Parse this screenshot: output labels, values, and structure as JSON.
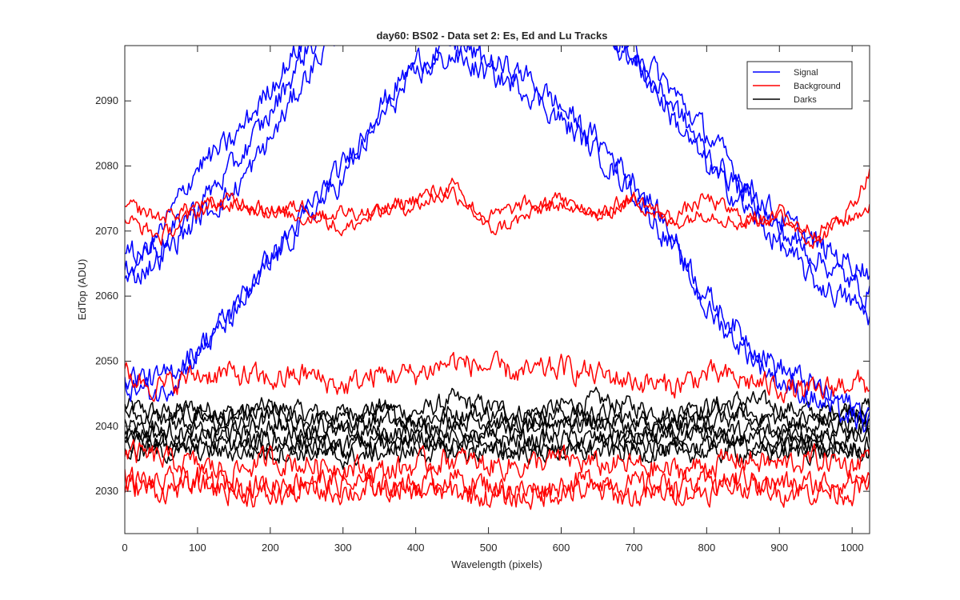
{
  "chart_data": {
    "type": "line",
    "title": "day60: BS02 - Data set 2: Es, Ed and Lu Tracks",
    "xlabel": "Wavelength (pixels)",
    "ylabel": "EdTop (ADU)",
    "xlim": [
      0,
      1024
    ],
    "ylim": [
      2023.5,
      2098.5
    ],
    "xticks": [
      0,
      100,
      200,
      300,
      400,
      500,
      600,
      700,
      800,
      900,
      1000
    ],
    "yticks": [
      2030,
      2040,
      2050,
      2060,
      2070,
      2080,
      2090
    ],
    "grid": false,
    "legend_position": "top-right",
    "legend": [
      {
        "label": "Signal",
        "color": "#0000ff"
      },
      {
        "label": "Background",
        "color": "#ff0000"
      },
      {
        "label": "Darks",
        "color": "#000000"
      }
    ],
    "x": [
      0,
      50,
      100,
      150,
      200,
      250,
      300,
      350,
      400,
      450,
      500,
      550,
      600,
      650,
      700,
      750,
      800,
      850,
      900,
      950,
      1000,
      1024
    ],
    "series": [
      {
        "group": "Signal",
        "color": "#0000ff",
        "noise": 1.6,
        "values": [
          2063,
          2070,
          2080,
          2084,
          2092,
          2100,
          2102,
          2102,
          2102,
          2102,
          2102,
          2102,
          2102,
          2102,
          2098,
          2092,
          2085,
          2078,
          2072,
          2068,
          2065,
          2064
        ]
      },
      {
        "group": "Signal",
        "color": "#0000ff",
        "noise": 1.6,
        "values": [
          2066,
          2068,
          2074,
          2080,
          2088,
          2098,
          2102,
          2102,
          2102,
          2102,
          2102,
          2102,
          2102,
          2102,
          2097,
          2088,
          2080,
          2074,
          2068,
          2062,
          2059,
          2057
        ]
      },
      {
        "group": "Signal",
        "color": "#0000ff",
        "noise": 1.6,
        "values": [
          2062,
          2066,
          2072,
          2076,
          2084,
          2094,
          2102,
          2102,
          2102,
          2102,
          2102,
          2102,
          2102,
          2102,
          2096,
          2090,
          2082,
          2076,
          2070,
          2066,
          2062,
          2060
        ]
      },
      {
        "group": "Signal",
        "color": "#0000ff",
        "noise": 1.6,
        "values": [
          2048,
          2047,
          2052,
          2058,
          2066,
          2073,
          2080,
          2089,
          2096,
          2099,
          2096,
          2094,
          2089,
          2084,
          2078,
          2070,
          2060,
          2054,
          2049,
          2046,
          2043,
          2042
        ]
      },
      {
        "group": "Signal",
        "color": "#0000ff",
        "noise": 1.6,
        "values": [
          2046,
          2045,
          2051,
          2057,
          2065,
          2072,
          2078,
          2087,
          2094,
          2097,
          2094,
          2092,
          2087,
          2082,
          2076,
          2068,
          2058,
          2052,
          2047,
          2044,
          2041,
          2040
        ]
      },
      {
        "group": "Background",
        "color": "#ff0000",
        "noise": 1.0,
        "values": [
          2074,
          2072,
          2074,
          2074,
          2073,
          2074,
          2070,
          2073,
          2075,
          2077,
          2070,
          2072,
          2075,
          2072,
          2075,
          2071,
          2073,
          2071,
          2073,
          2068,
          2074,
          2079
        ]
      },
      {
        "group": "Background",
        "color": "#ff0000",
        "noise": 1.0,
        "values": [
          2072,
          2069,
          2073,
          2075,
          2073,
          2072,
          2073,
          2073,
          2074,
          2076,
          2072,
          2074,
          2074,
          2073,
          2075,
          2072,
          2075,
          2072,
          2072,
          2070,
          2072,
          2074
        ]
      },
      {
        "group": "Background",
        "color": "#ff0000",
        "noise": 1.6,
        "values": [
          2048,
          2046,
          2048,
          2048,
          2047,
          2048,
          2046,
          2048,
          2048,
          2050,
          2049,
          2048,
          2049,
          2048,
          2047,
          2046,
          2048,
          2047,
          2046,
          2045,
          2047,
          2046
        ]
      },
      {
        "group": "Background",
        "color": "#ff0000",
        "noise": 1.6,
        "values": [
          2036,
          2035,
          2034,
          2033,
          2035,
          2034,
          2034,
          2033,
          2034,
          2035,
          2034,
          2034,
          2035,
          2034,
          2034,
          2033,
          2034,
          2035,
          2034,
          2035,
          2034,
          2036
        ]
      },
      {
        "group": "Background",
        "color": "#ff0000",
        "noise": 1.6,
        "values": [
          2032,
          2031,
          2032,
          2031,
          2031,
          2032,
          2031,
          2031,
          2031,
          2032,
          2031,
          2030,
          2031,
          2032,
          2031,
          2031,
          2031,
          2032,
          2031,
          2031,
          2032,
          2032
        ]
      },
      {
        "group": "Background",
        "color": "#ff0000",
        "noise": 1.6,
        "values": [
          2031,
          2030,
          2031,
          2030,
          2029,
          2030,
          2030,
          2030,
          2030,
          2030,
          2029,
          2029,
          2030,
          2030,
          2029,
          2030,
          2030,
          2031,
          2030,
          2030,
          2030,
          2031
        ]
      },
      {
        "group": "Darks",
        "color": "#000000",
        "noise": 1.3,
        "values": [
          2043,
          2042,
          2043,
          2042,
          2043,
          2042,
          2042,
          2043,
          2042,
          2044,
          2043,
          2042,
          2043,
          2044,
          2043,
          2042,
          2043,
          2044,
          2043,
          2042,
          2043,
          2043
        ]
      },
      {
        "group": "Darks",
        "color": "#000000",
        "noise": 1.3,
        "values": [
          2042,
          2041,
          2042,
          2041,
          2042,
          2041,
          2041,
          2042,
          2041,
          2042,
          2042,
          2041,
          2042,
          2042,
          2041,
          2041,
          2042,
          2042,
          2041,
          2041,
          2042,
          2042
        ]
      },
      {
        "group": "Darks",
        "color": "#000000",
        "noise": 1.3,
        "values": [
          2040,
          2040,
          2041,
          2040,
          2041,
          2040,
          2040,
          2041,
          2040,
          2041,
          2041,
          2040,
          2041,
          2041,
          2040,
          2040,
          2041,
          2041,
          2040,
          2040,
          2041,
          2041
        ]
      },
      {
        "group": "Darks",
        "color": "#000000",
        "noise": 1.3,
        "values": [
          2039,
          2039,
          2039,
          2039,
          2040,
          2039,
          2039,
          2039,
          2039,
          2040,
          2039,
          2039,
          2040,
          2040,
          2039,
          2039,
          2040,
          2039,
          2039,
          2039,
          2039,
          2040
        ]
      },
      {
        "group": "Darks",
        "color": "#000000",
        "noise": 1.3,
        "values": [
          2038,
          2038,
          2038,
          2038,
          2038,
          2038,
          2037,
          2038,
          2038,
          2038,
          2038,
          2038,
          2038,
          2038,
          2038,
          2038,
          2038,
          2038,
          2038,
          2038,
          2038,
          2038
        ]
      },
      {
        "group": "Darks",
        "color": "#000000",
        "noise": 1.3,
        "values": [
          2037,
          2037,
          2037,
          2037,
          2037,
          2037,
          2036,
          2037,
          2037,
          2037,
          2037,
          2037,
          2037,
          2037,
          2037,
          2037,
          2037,
          2037,
          2037,
          2037,
          2037,
          2037
        ]
      },
      {
        "group": "Darks",
        "color": "#000000",
        "noise": 1.3,
        "values": [
          2036,
          2036,
          2036,
          2036,
          2036,
          2036,
          2035,
          2036,
          2036,
          2036,
          2036,
          2036,
          2036,
          2036,
          2036,
          2036,
          2036,
          2036,
          2036,
          2036,
          2036,
          2036
        ]
      }
    ]
  }
}
